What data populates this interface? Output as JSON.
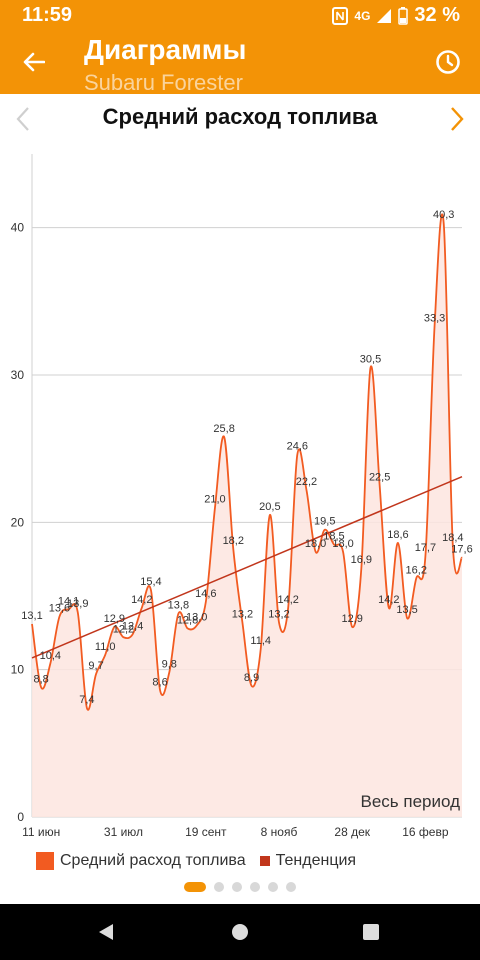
{
  "status": {
    "time": "11:59",
    "network": "4G",
    "battery": "32 %"
  },
  "appbar": {
    "title": "Диаграммы",
    "subtitle": "Subaru Forester"
  },
  "chart_header": {
    "title": "Средний расход топлива"
  },
  "chart": {
    "period_label": "Весь период"
  },
  "legend": {
    "series_label": "Средний расход топлива",
    "trend_label": "Тенденция"
  },
  "colors": {
    "accent": "#f39306",
    "series": "#f25b21",
    "trend": "#c1361c",
    "fill": "#fde5df"
  },
  "chart_data": {
    "type": "area",
    "ylim": [
      0,
      45
    ],
    "yticks": [
      0,
      10,
      20,
      30,
      40
    ],
    "xticks": [
      "11 июн",
      "31 июл",
      "19 сент",
      "8 нояб",
      "28 дек",
      "16 февр"
    ],
    "values": [
      13.1,
      8.8,
      10.4,
      13.6,
      14.1,
      13.9,
      7.4,
      9.7,
      11.0,
      12.9,
      12.2,
      12.4,
      14.2,
      15.4,
      8.6,
      9.8,
      13.8,
      12.8,
      13.0,
      14.6,
      21.0,
      25.8,
      18.2,
      13.2,
      8.9,
      11.4,
      20.5,
      13.2,
      14.2,
      24.6,
      22.2,
      18.0,
      19.5,
      18.5,
      18.0,
      12.9,
      16.9,
      30.5,
      22.5,
      14.2,
      18.6,
      13.5,
      16.2,
      17.7,
      33.3,
      40.3,
      18.4,
      17.6
    ],
    "labels": [
      "13,1",
      "8,8",
      "10,4",
      "13,6",
      "14,1",
      "13,9",
      "7,4",
      "9,7",
      "11,0",
      "12,9",
      "12,2",
      "12,4",
      "14,2",
      "15,4",
      "8,6",
      "9,8",
      "13,8",
      "12,8",
      "13,0",
      "14,6",
      "21,0",
      "25,8",
      "18,2",
      "13,2",
      "8,9",
      "11,4",
      "20,5",
      "13,2",
      "14,2",
      "24,6",
      "22,2",
      "18,0",
      "19,5",
      "18,5",
      "18,0",
      "12,9",
      "16,9",
      "30,5",
      "22,5",
      "14,2",
      "18,6",
      "13,5",
      "16,2",
      "17,7",
      "33,3",
      "40,3",
      "18,4",
      "17,6"
    ],
    "trend": {
      "start": 10.8,
      "end": 23.1
    },
    "series": [
      {
        "name": "Средний расход топлива"
      },
      {
        "name": "Тенденция"
      }
    ]
  }
}
